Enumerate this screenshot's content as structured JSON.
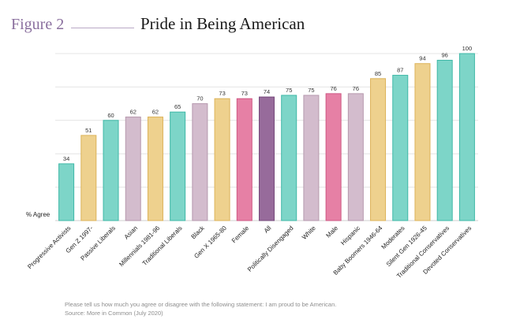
{
  "figure": {
    "label": "Figure 2"
  },
  "chart_data": {
    "type": "bar",
    "title": "Pride in Being American",
    "ylabel": "% Agree",
    "ylim": [
      0,
      100
    ],
    "grid": true,
    "categories": [
      "Progressive Activists",
      "Gen Z 1997-",
      "Passive Liberals",
      "Asian",
      "Millennials 1981-96",
      "Traditional Liberals",
      "Black",
      "Gen X 1965-80",
      "Female",
      "All",
      "Politically Disengaged",
      "White",
      "Male",
      "Hispanic",
      "Baby Boomers 1946-64",
      "Moderates",
      "Silent Gen 1926-45",
      "Traditional Conservatives",
      "Devoted Conservatives"
    ],
    "values": [
      34,
      51,
      60,
      62,
      62,
      65,
      70,
      73,
      73,
      74,
      75,
      75,
      76,
      76,
      85,
      87,
      94,
      96,
      100
    ],
    "bar_colors": [
      "#7dd5c8",
      "#eed18e",
      "#7dd5c8",
      "#d3bccd",
      "#eed18e",
      "#7dd5c8",
      "#d3bccd",
      "#eed18e",
      "#e680a5",
      "#976b9b",
      "#7dd5c8",
      "#d3bccd",
      "#e680a5",
      "#d3bccd",
      "#eed18e",
      "#7dd5c8",
      "#eed18e",
      "#7dd5c8",
      "#7dd5c8"
    ],
    "bar_edge_colors": [
      "#3fb8a7",
      "#dcb35a",
      "#3fb8a7",
      "#b699ae",
      "#dcb35a",
      "#3fb8a7",
      "#b699ae",
      "#dcb35a",
      "#cf5783",
      "#76497b",
      "#3fb8a7",
      "#b699ae",
      "#cf5783",
      "#b699ae",
      "#dcb35a",
      "#3fb8a7",
      "#dcb35a",
      "#3fb8a7",
      "#3fb8a7"
    ]
  },
  "footnote": {
    "question": "Please tell us how much you agree or disagree with the following statement: I am proud to be American.",
    "source": "Source: More in Common (July 2020)"
  }
}
